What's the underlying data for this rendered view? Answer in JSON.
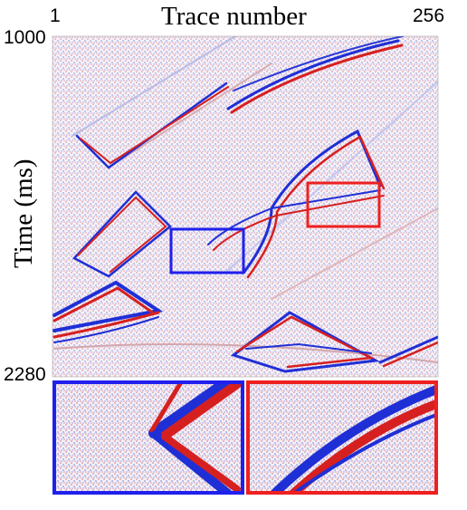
{
  "figure": {
    "title": "Trace number",
    "x_first_label": "1",
    "x_last_label": "256",
    "y_label": "Time (ms)",
    "y_top_label": "1000",
    "y_bottom_label": "2280"
  },
  "colors": {
    "positive": "#d62020",
    "negative": "#1f2fd6",
    "background": "#ffffff",
    "blue_box": "#2020ee",
    "red_box": "#ee2020"
  }
}
